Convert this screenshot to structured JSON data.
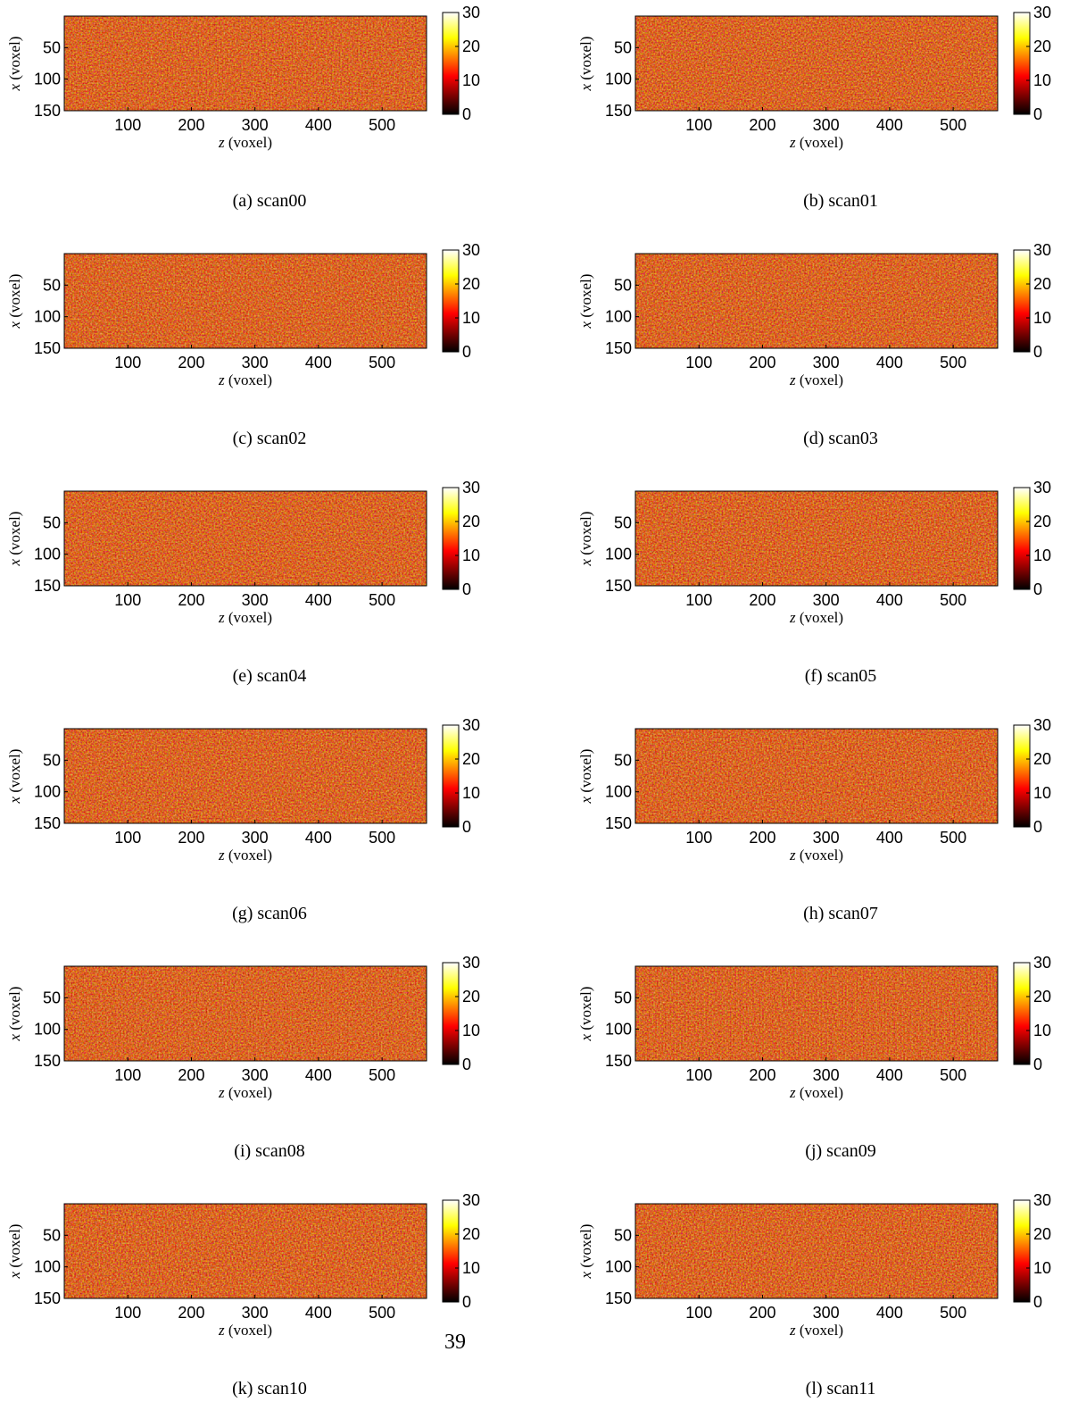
{
  "chart_data": [
    {
      "type": "heatmap",
      "caption": "(a) scan00",
      "xlabel_var": "z",
      "xlabel_unit": "(voxel)",
      "ylabel_var": "x",
      "ylabel_unit": "(voxel)",
      "xticks": [
        100,
        200,
        300,
        400,
        500
      ],
      "yticks": [
        50,
        100,
        150
      ],
      "xlim": [
        0,
        570
      ],
      "ylim": [
        0,
        150
      ],
      "colorbar_ticks": [
        0,
        10,
        20,
        30
      ],
      "colorbar_range": [
        0,
        30
      ],
      "colormap": "hot"
    },
    {
      "type": "heatmap",
      "caption": "(b) scan01",
      "xlabel_var": "z",
      "xlabel_unit": "(voxel)",
      "ylabel_var": "x",
      "ylabel_unit": "(voxel)",
      "xticks": [
        100,
        200,
        300,
        400,
        500
      ],
      "yticks": [
        50,
        100,
        150
      ],
      "xlim": [
        0,
        570
      ],
      "ylim": [
        0,
        150
      ],
      "colorbar_ticks": [
        0,
        10,
        20,
        30
      ],
      "colorbar_range": [
        0,
        30
      ],
      "colormap": "hot"
    },
    {
      "type": "heatmap",
      "caption": "(c) scan02",
      "xlabel_var": "z",
      "xlabel_unit": "(voxel)",
      "ylabel_var": "x",
      "ylabel_unit": "(voxel)",
      "xticks": [
        100,
        200,
        300,
        400,
        500
      ],
      "yticks": [
        50,
        100,
        150
      ],
      "xlim": [
        0,
        570
      ],
      "ylim": [
        0,
        150
      ],
      "colorbar_ticks": [
        0,
        10,
        20,
        30
      ],
      "colorbar_range": [
        0,
        30
      ],
      "colormap": "hot"
    },
    {
      "type": "heatmap",
      "caption": "(d) scan03",
      "xlabel_var": "z",
      "xlabel_unit": "(voxel)",
      "ylabel_var": "x",
      "ylabel_unit": "(voxel)",
      "xticks": [
        100,
        200,
        300,
        400,
        500
      ],
      "yticks": [
        50,
        100,
        150
      ],
      "xlim": [
        0,
        570
      ],
      "ylim": [
        0,
        150
      ],
      "colorbar_ticks": [
        0,
        10,
        20,
        30
      ],
      "colorbar_range": [
        0,
        30
      ],
      "colormap": "hot"
    },
    {
      "type": "heatmap",
      "caption": "(e) scan04",
      "xlabel_var": "z",
      "xlabel_unit": "(voxel)",
      "ylabel_var": "x",
      "ylabel_unit": "(voxel)",
      "xticks": [
        100,
        200,
        300,
        400,
        500
      ],
      "yticks": [
        50,
        100,
        150
      ],
      "xlim": [
        0,
        570
      ],
      "ylim": [
        0,
        150
      ],
      "colorbar_ticks": [
        0,
        10,
        20,
        30
      ],
      "colorbar_range": [
        0,
        30
      ],
      "colormap": "hot"
    },
    {
      "type": "heatmap",
      "caption": "(f) scan05",
      "xlabel_var": "z",
      "xlabel_unit": "(voxel)",
      "ylabel_var": "x",
      "ylabel_unit": "(voxel)",
      "xticks": [
        100,
        200,
        300,
        400,
        500
      ],
      "yticks": [
        50,
        100,
        150
      ],
      "xlim": [
        0,
        570
      ],
      "ylim": [
        0,
        150
      ],
      "colorbar_ticks": [
        0,
        10,
        20,
        30
      ],
      "colorbar_range": [
        0,
        30
      ],
      "colormap": "hot"
    },
    {
      "type": "heatmap",
      "caption": "(g) scan06",
      "xlabel_var": "z",
      "xlabel_unit": "(voxel)",
      "ylabel_var": "x",
      "ylabel_unit": "(voxel)",
      "xticks": [
        100,
        200,
        300,
        400,
        500
      ],
      "yticks": [
        50,
        100,
        150
      ],
      "xlim": [
        0,
        570
      ],
      "ylim": [
        0,
        150
      ],
      "colorbar_ticks": [
        0,
        10,
        20,
        30
      ],
      "colorbar_range": [
        0,
        30
      ],
      "colormap": "hot"
    },
    {
      "type": "heatmap",
      "caption": "(h) scan07",
      "xlabel_var": "z",
      "xlabel_unit": "(voxel)",
      "ylabel_var": "x",
      "ylabel_unit": "(voxel)",
      "xticks": [
        100,
        200,
        300,
        400,
        500
      ],
      "yticks": [
        50,
        100,
        150
      ],
      "xlim": [
        0,
        570
      ],
      "ylim": [
        0,
        150
      ],
      "colorbar_ticks": [
        0,
        10,
        20,
        30
      ],
      "colorbar_range": [
        0,
        30
      ],
      "colormap": "hot"
    },
    {
      "type": "heatmap",
      "caption": "(i) scan08",
      "xlabel_var": "z",
      "xlabel_unit": "(voxel)",
      "ylabel_var": "x",
      "ylabel_unit": "(voxel)",
      "xticks": [
        100,
        200,
        300,
        400,
        500
      ],
      "yticks": [
        50,
        100,
        150
      ],
      "xlim": [
        0,
        570
      ],
      "ylim": [
        0,
        150
      ],
      "colorbar_ticks": [
        0,
        10,
        20,
        30
      ],
      "colorbar_range": [
        0,
        30
      ],
      "colormap": "hot"
    },
    {
      "type": "heatmap",
      "caption": "(j) scan09",
      "xlabel_var": "z",
      "xlabel_unit": "(voxel)",
      "ylabel_var": "x",
      "ylabel_unit": "(voxel)",
      "xticks": [
        100,
        200,
        300,
        400,
        500
      ],
      "yticks": [
        50,
        100,
        150
      ],
      "xlim": [
        0,
        570
      ],
      "ylim": [
        0,
        150
      ],
      "colorbar_ticks": [
        0,
        10,
        20,
        30
      ],
      "colorbar_range": [
        0,
        30
      ],
      "colormap": "hot"
    },
    {
      "type": "heatmap",
      "caption": "(k) scan10",
      "xlabel_var": "z",
      "xlabel_unit": "(voxel)",
      "ylabel_var": "x",
      "ylabel_unit": "(voxel)",
      "xticks": [
        100,
        200,
        300,
        400,
        500
      ],
      "yticks": [
        50,
        100,
        150
      ],
      "xlim": [
        0,
        570
      ],
      "ylim": [
        0,
        150
      ],
      "colorbar_ticks": [
        0,
        10,
        20,
        30
      ],
      "colorbar_range": [
        0,
        30
      ],
      "colormap": "hot"
    },
    {
      "type": "heatmap",
      "caption": "(l) scan11",
      "xlabel_var": "z",
      "xlabel_unit": "(voxel)",
      "ylabel_var": "x",
      "ylabel_unit": "(voxel)",
      "xticks": [
        100,
        200,
        300,
        400,
        500
      ],
      "yticks": [
        50,
        100,
        150
      ],
      "xlim": [
        0,
        570
      ],
      "ylim": [
        0,
        150
      ],
      "colorbar_ticks": [
        0,
        10,
        20,
        30
      ],
      "colorbar_range": [
        0,
        30
      ],
      "colormap": "hot"
    }
  ],
  "page_number": "39"
}
